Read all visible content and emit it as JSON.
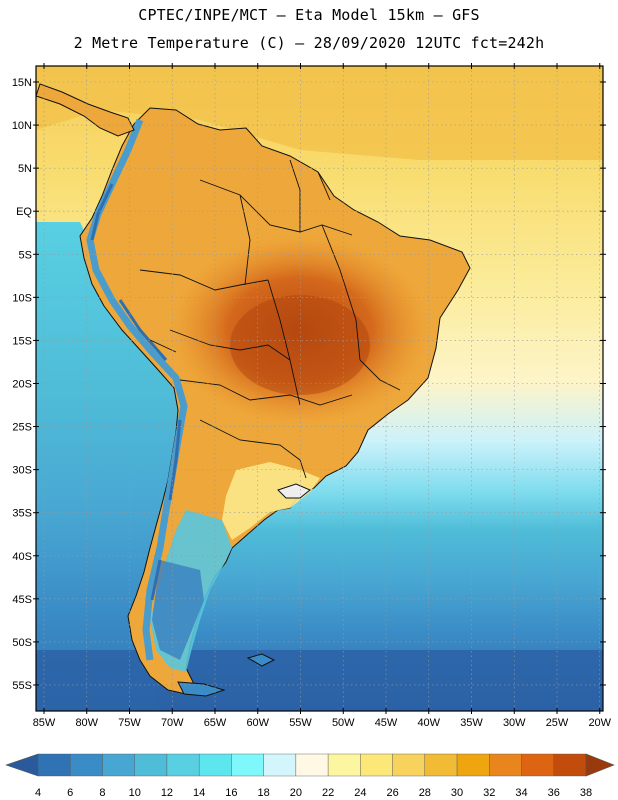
{
  "header": {
    "title_line1": "CPTEC/INPE/MCT –  Eta Model 15km – GFS",
    "title_line2": "2 Metre Temperature (C) – 28/09/2020 12UTC fct=242h"
  },
  "map": {
    "lat_labels": [
      "15N",
      "10N",
      "5N",
      "EQ",
      "5S",
      "10S",
      "15S",
      "20S",
      "25S",
      "30S",
      "35S",
      "40S",
      "45S",
      "50S",
      "55S"
    ],
    "lon_labels": [
      "85W",
      "80W",
      "75W",
      "70W",
      "65W",
      "60W",
      "55W",
      "50W",
      "45W",
      "40W",
      "35W",
      "30W",
      "25W",
      "20W"
    ]
  },
  "colorbar": {
    "labels": [
      "4",
      "6",
      "8",
      "10",
      "12",
      "14",
      "16",
      "18",
      "20",
      "22",
      "24",
      "26",
      "28",
      "30",
      "32",
      "34",
      "36",
      "38"
    ],
    "colors": [
      "#2a5a9c",
      "#2f73b4",
      "#3a8cc6",
      "#48a6d2",
      "#4fbcd8",
      "#58d0e2",
      "#5ee6ee",
      "#7ef8fa",
      "#d2f6fb",
      "#fef8e4",
      "#fdf6a0",
      "#fbe878",
      "#f7d25c",
      "#f1bb35",
      "#eea510",
      "#e8861d",
      "#dd6511",
      "#c24c0c",
      "#9a3a0c"
    ]
  },
  "palette": {
    "ocean_warm": "#fbe88a",
    "ocean_mid": "#fdf4c8",
    "ocean_cool": "#c7f0f8",
    "ocean_cold": "#46b6d6",
    "ocean_deep": "#2f73b4",
    "land_hot": "#c2551a",
    "land_warm": "#e39a2a",
    "land_mild": "#f1b53e",
    "andes": "#3f8fc8",
    "border": "#111111",
    "grid": "#9a9a9a"
  }
}
